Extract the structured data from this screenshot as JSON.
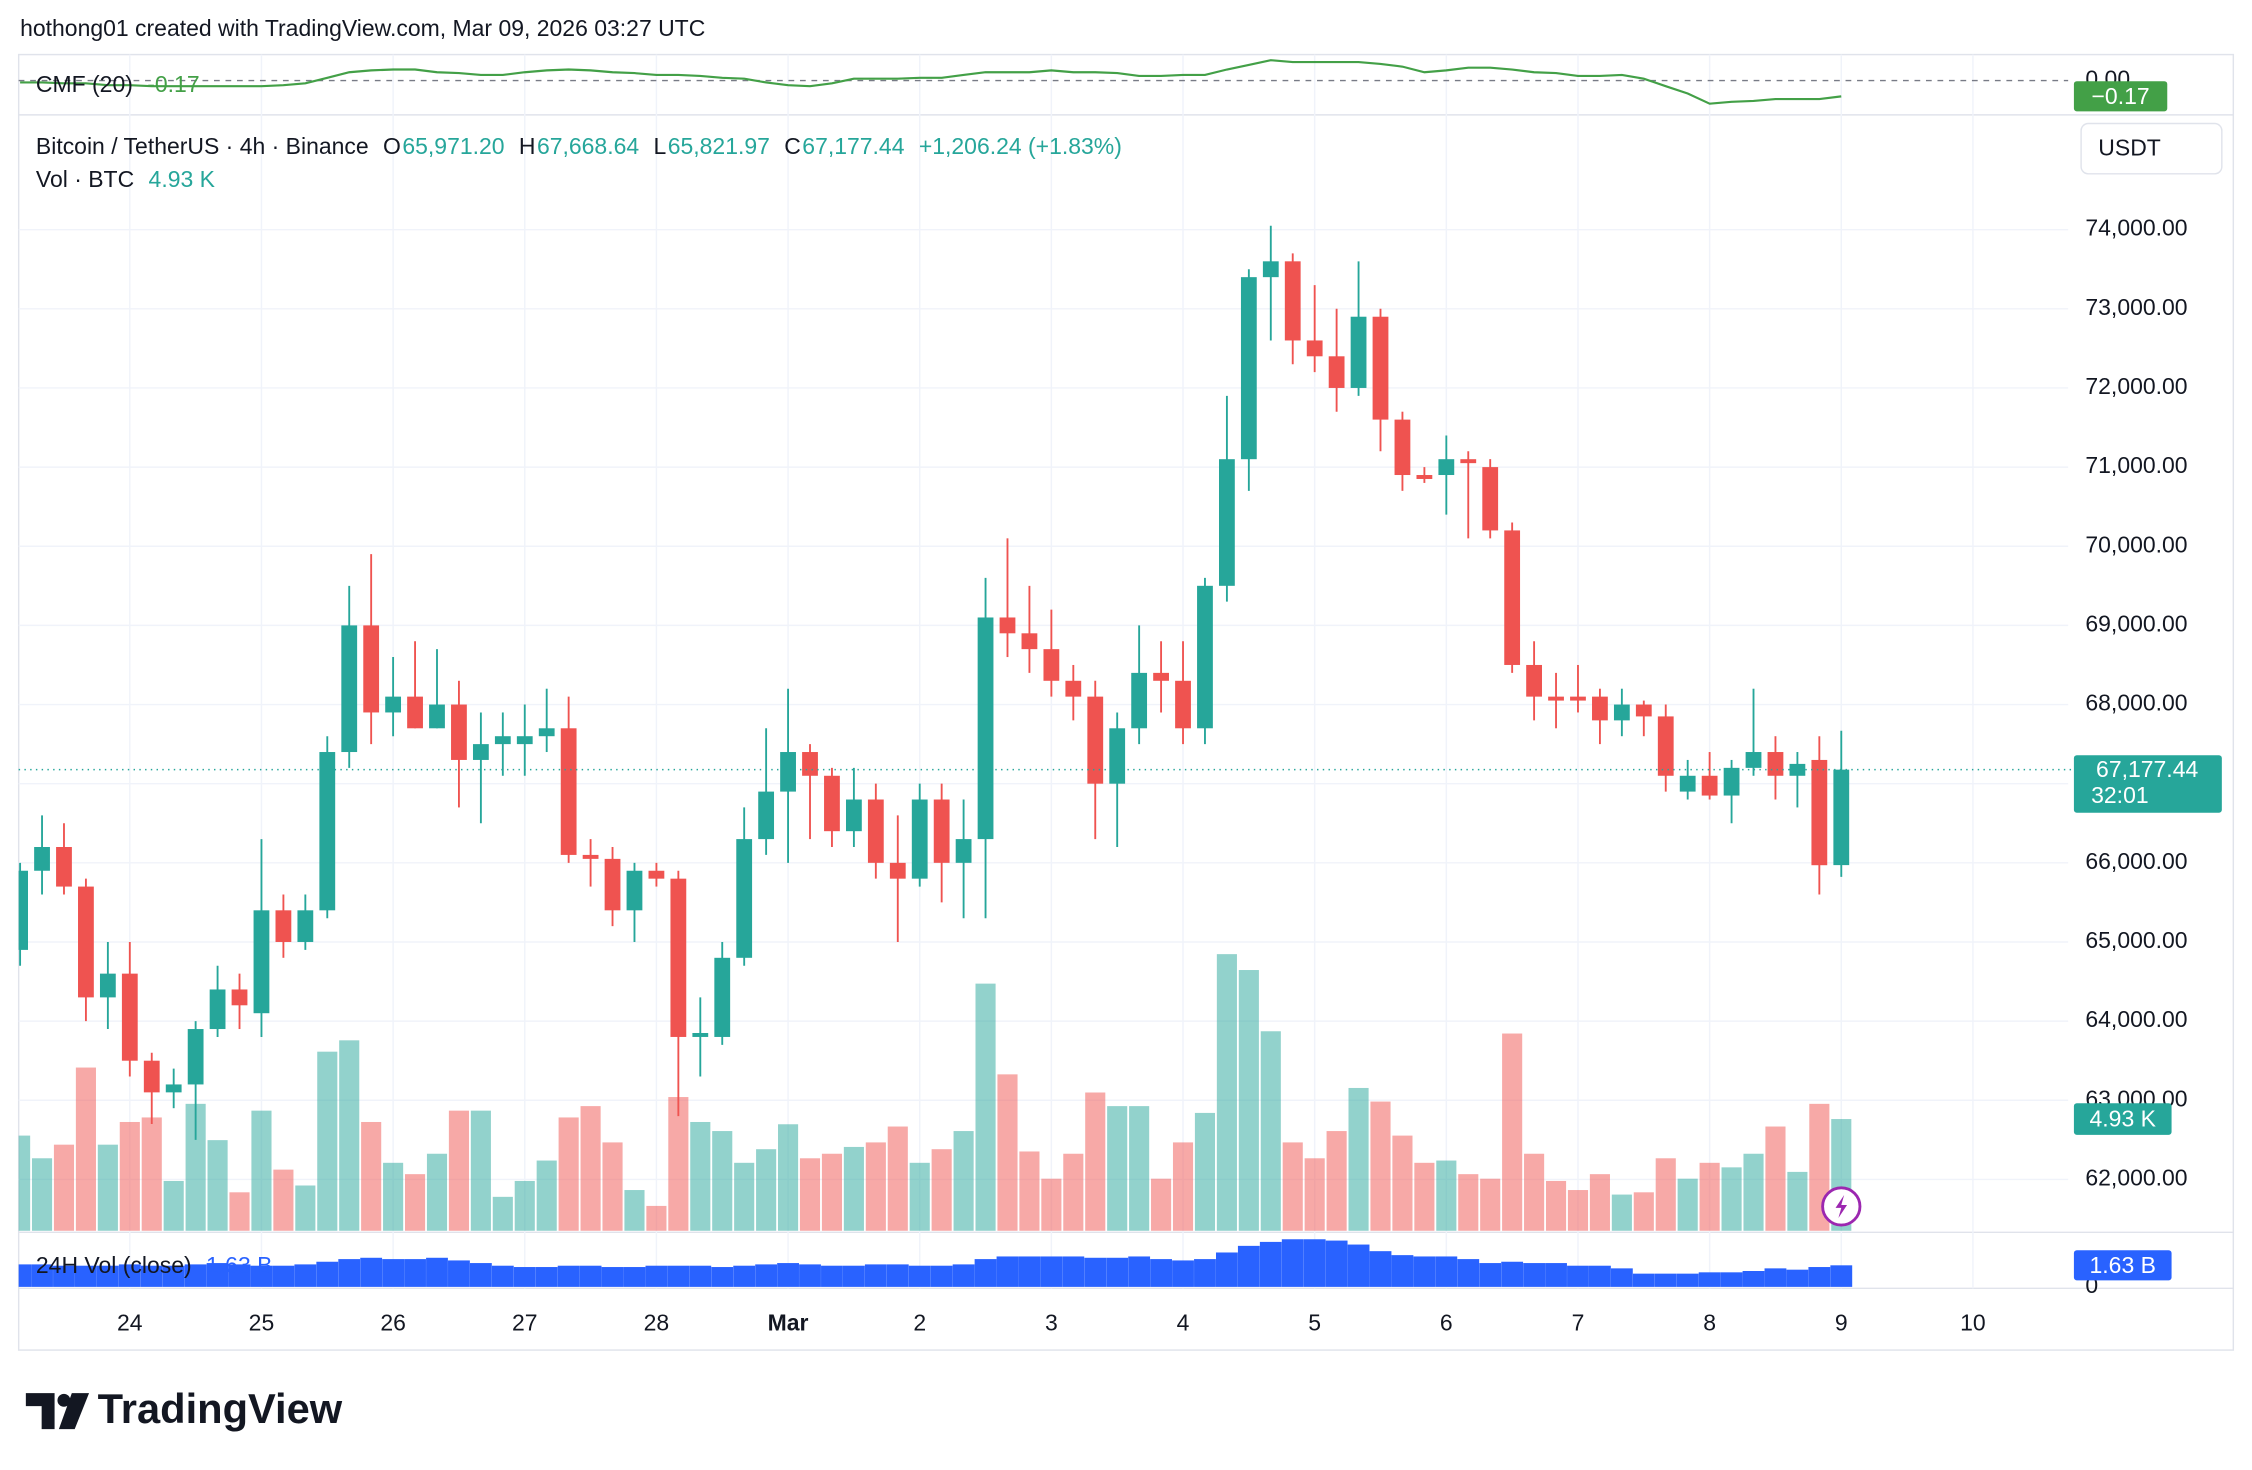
{
  "header": {
    "attribution": "hothong01 created with TradingView.com, Mar 09, 2026 03:27 UTC",
    "brand": "TradingView",
    "currency": "USDT"
  },
  "chart_data": [
    {
      "type": "candlestick",
      "title": "Bitcoin / TetherUS · 4h · Binance",
      "ohlc_legend": [
        {
          "key": "O",
          "value": "65,971.20"
        },
        {
          "key": "H",
          "value": "67,668.64"
        },
        {
          "key": "L",
          "value": "65,821.97"
        },
        {
          "key": "C",
          "value": "67,177.44"
        }
      ],
      "change": "+1,206.24 (+1.83%)",
      "volume_title": "Vol · BTC",
      "volume_label": "4.93 K",
      "last_price_label": "67,177.44",
      "countdown": "32:01",
      "up_color": "#26a69a",
      "down_color": "#ef5350",
      "grid": true,
      "open": [
        64900,
        65900,
        66200,
        65700,
        64300,
        64600,
        63500,
        63100,
        63200,
        63900,
        64400,
        64100,
        65400,
        65000,
        65400,
        67400,
        69000,
        67900,
        68100,
        67700,
        68000,
        67300,
        67500,
        67500,
        67600,
        67700,
        66100,
        66050,
        65400,
        65900,
        65800,
        63800,
        63800,
        64800,
        66300,
        66900,
        67400,
        67100,
        66400,
        66800,
        66000,
        65800,
        66800,
        66000,
        66300,
        69100,
        68900,
        68700,
        68300,
        68100,
        67000,
        67700,
        68400,
        68300,
        67700,
        69500,
        71100,
        73400,
        73600,
        72600,
        72400,
        72000,
        72900,
        71600,
        70900,
        70900,
        71100,
        71000,
        70200,
        68500,
        68100,
        68100,
        68100,
        67800,
        68000,
        67850,
        66900,
        67100,
        66850,
        67200,
        67400,
        67100,
        67300,
        65971.2
      ],
      "high": [
        66000,
        66600,
        66500,
        65800,
        65000,
        65000,
        63600,
        63400,
        64000,
        64700,
        64600,
        66300,
        65600,
        65600,
        67600,
        69500,
        69900,
        68600,
        68800,
        68700,
        68300,
        67900,
        67900,
        68000,
        68200,
        68100,
        66300,
        66200,
        66000,
        66000,
        65900,
        64300,
        65000,
        66700,
        67700,
        68200,
        67500,
        67200,
        67200,
        67000,
        66600,
        67000,
        67000,
        66800,
        69600,
        70100,
        69500,
        69200,
        68500,
        68300,
        67900,
        69000,
        68800,
        68800,
        69600,
        71900,
        73500,
        74050,
        73700,
        73300,
        73000,
        73600,
        73000,
        71700,
        71000,
        71400,
        71200,
        71100,
        70300,
        68800,
        68400,
        68500,
        68200,
        68200,
        68050,
        68000,
        67300,
        67400,
        67300,
        68200,
        67600,
        67400,
        67600,
        67668.64
      ],
      "low": [
        64700,
        65600,
        65600,
        64000,
        63900,
        63300,
        62700,
        62900,
        62500,
        63800,
        63900,
        63800,
        64800,
        64900,
        65300,
        67200,
        67500,
        67600,
        67700,
        67700,
        66700,
        66500,
        67100,
        67100,
        67400,
        66000,
        65700,
        65200,
        65000,
        65700,
        62800,
        63300,
        63700,
        64700,
        66100,
        66000,
        66300,
        66200,
        66200,
        65800,
        65000,
        65700,
        65500,
        65300,
        65300,
        68600,
        68400,
        68100,
        67800,
        66300,
        66200,
        67500,
        67900,
        67500,
        67500,
        69300,
        70700,
        72600,
        72300,
        72200,
        71700,
        71900,
        71200,
        70700,
        70800,
        70400,
        70100,
        70100,
        68400,
        67800,
        67700,
        67900,
        67500,
        67600,
        67600,
        66900,
        66800,
        66800,
        66500,
        67100,
        66800,
        66700,
        65600,
        65821.97
      ],
      "close": [
        65900,
        66200,
        65700,
        64300,
        64600,
        63500,
        63100,
        63200,
        63900,
        64400,
        64200,
        65400,
        65000,
        65400,
        67400,
        69000,
        67900,
        68100,
        67700,
        68000,
        67300,
        67500,
        67600,
        67600,
        67700,
        66100,
        66050,
        65400,
        65900,
        65800,
        63800,
        63850,
        64800,
        66300,
        66900,
        67400,
        67100,
        66400,
        66800,
        66000,
        65800,
        66800,
        66000,
        66300,
        69100,
        68900,
        68700,
        68300,
        68100,
        67000,
        67700,
        68400,
        68300,
        67700,
        69500,
        71100,
        73400,
        73600,
        72600,
        72400,
        72000,
        72900,
        71600,
        70900,
        70850,
        71100,
        71050,
        70200,
        68500,
        68100,
        68050,
        68050,
        67800,
        68000,
        67850,
        67100,
        67100,
        66850,
        67200,
        67400,
        67100,
        67250,
        65970,
        67177.44
      ],
      "volume": [
        4.2,
        3.2,
        3.8,
        7.2,
        3.8,
        4.8,
        5.0,
        2.2,
        5.6,
        4.0,
        1.7,
        5.3,
        2.7,
        2.0,
        7.9,
        8.4,
        4.8,
        3.0,
        2.5,
        3.4,
        5.3,
        5.3,
        1.5,
        2.2,
        3.1,
        5.0,
        5.5,
        3.9,
        1.8,
        1.1,
        5.9,
        4.8,
        4.4,
        3.0,
        3.6,
        4.7,
        3.2,
        3.4,
        3.7,
        3.9,
        4.6,
        3.0,
        3.6,
        4.4,
        10.9,
        6.9,
        3.5,
        2.3,
        3.4,
        6.1,
        5.5,
        5.5,
        2.3,
        3.9,
        5.2,
        12.2,
        11.5,
        8.8,
        3.9,
        3.2,
        4.4,
        6.3,
        5.7,
        4.2,
        3.0,
        3.1,
        2.5,
        2.3,
        8.7,
        3.4,
        2.2,
        1.8,
        2.5,
        1.6,
        1.7,
        3.2,
        2.3,
        3.0,
        2.8,
        3.4,
        4.6,
        2.6,
        5.6,
        4.93
      ],
      "volume_ylim": [
        0,
        49.2
      ],
      "xlim": [
        -0.065,
        93.34
      ],
      "xticks": [
        {
          "value": 5,
          "label": "24"
        },
        {
          "value": 11,
          "label": "25"
        },
        {
          "value": 17,
          "label": "26"
        },
        {
          "value": 23,
          "label": "27"
        },
        {
          "value": 29,
          "label": "28"
        },
        {
          "value": 35,
          "label": "Mar"
        },
        {
          "value": 41,
          "label": "2"
        },
        {
          "value": 47,
          "label": "3"
        },
        {
          "value": 53,
          "label": "4"
        },
        {
          "value": 59,
          "label": "5"
        },
        {
          "value": 65,
          "label": "6"
        },
        {
          "value": 71,
          "label": "7"
        },
        {
          "value": 77,
          "label": "8"
        },
        {
          "value": 83,
          "label": "9"
        },
        {
          "value": 89,
          "label": "10"
        }
      ],
      "ylim": [
        61350,
        75450
      ],
      "yticks": [
        {
          "value": 62000,
          "label": "62,000.00"
        },
        {
          "value": 63000,
          "label": "63,000.00"
        },
        {
          "value": 64000,
          "label": "64,000.00"
        },
        {
          "value": 65000,
          "label": "65,000.00"
        },
        {
          "value": 66000,
          "label": "66,000.00"
        },
        {
          "value": 67000,
          "label": "67,000.00"
        },
        {
          "value": 68000,
          "label": "68,000.00"
        },
        {
          "value": 69000,
          "label": "69,000.00"
        },
        {
          "value": 70000,
          "label": "70,000.00"
        },
        {
          "value": 71000,
          "label": "71,000.00"
        },
        {
          "value": 72000,
          "label": "72,000.00"
        },
        {
          "value": 73000,
          "label": "73,000.00"
        },
        {
          "value": 74000,
          "label": "74,000.00"
        }
      ]
    },
    {
      "type": "line",
      "title": "CMF (20)",
      "last_label": "-0.17",
      "badge_label": "−0.17",
      "color": "#43a047",
      "values": [
        -0.02,
        -0.02,
        -0.03,
        -0.03,
        -0.05,
        -0.05,
        -0.06,
        -0.06,
        -0.06,
        -0.06,
        -0.06,
        -0.06,
        -0.05,
        -0.03,
        0.03,
        0.09,
        0.11,
        0.12,
        0.12,
        0.09,
        0.08,
        0.06,
        0.06,
        0.09,
        0.11,
        0.12,
        0.11,
        0.09,
        0.08,
        0.06,
        0.06,
        0.05,
        0.03,
        0.02,
        -0.02,
        -0.05,
        -0.06,
        -0.03,
        0.02,
        0.02,
        0.02,
        0.03,
        0.03,
        0.06,
        0.09,
        0.09,
        0.09,
        0.11,
        0.09,
        0.09,
        0.08,
        0.05,
        0.05,
        0.06,
        0.06,
        0.12,
        0.17,
        0.22,
        0.2,
        0.2,
        0.2,
        0.2,
        0.18,
        0.15,
        0.09,
        0.11,
        0.14,
        0.14,
        0.12,
        0.09,
        0.08,
        0.05,
        0.05,
        0.06,
        0.02,
        -0.06,
        -0.14,
        -0.25,
        -0.23,
        -0.22,
        -0.2,
        -0.2,
        -0.2,
        -0.17
      ],
      "ylim": [
        -0.34,
        0.25
      ],
      "yticks": [
        {
          "value": 0,
          "label": "0.00"
        }
      ]
    },
    {
      "type": "bar",
      "title": "24H Vol (close)",
      "last_label": "1.63 B",
      "color": "#2962ff",
      "values": [
        1.7,
        1.7,
        1.6,
        1.6,
        1.6,
        1.7,
        1.6,
        1.6,
        1.7,
        1.8,
        1.7,
        1.6,
        1.6,
        1.7,
        1.9,
        2.1,
        2.2,
        2.1,
        2.1,
        2.2,
        2.0,
        1.8,
        1.6,
        1.5,
        1.5,
        1.6,
        1.6,
        1.5,
        1.5,
        1.6,
        1.6,
        1.6,
        1.5,
        1.6,
        1.7,
        1.8,
        1.7,
        1.6,
        1.6,
        1.7,
        1.7,
        1.6,
        1.6,
        1.7,
        2.1,
        2.3,
        2.3,
        2.3,
        2.3,
        2.2,
        2.2,
        2.3,
        2.1,
        2.0,
        2.1,
        2.6,
        3.1,
        3.4,
        3.6,
        3.6,
        3.5,
        3.2,
        2.7,
        2.4,
        2.3,
        2.3,
        2.1,
        1.8,
        1.9,
        1.8,
        1.8,
        1.6,
        1.6,
        1.4,
        1.0,
        1.0,
        1.0,
        1.1,
        1.1,
        1.2,
        1.4,
        1.3,
        1.5,
        1.63
      ],
      "ylim": [
        0,
        3.8
      ],
      "yticks": [
        0
      ]
    }
  ]
}
